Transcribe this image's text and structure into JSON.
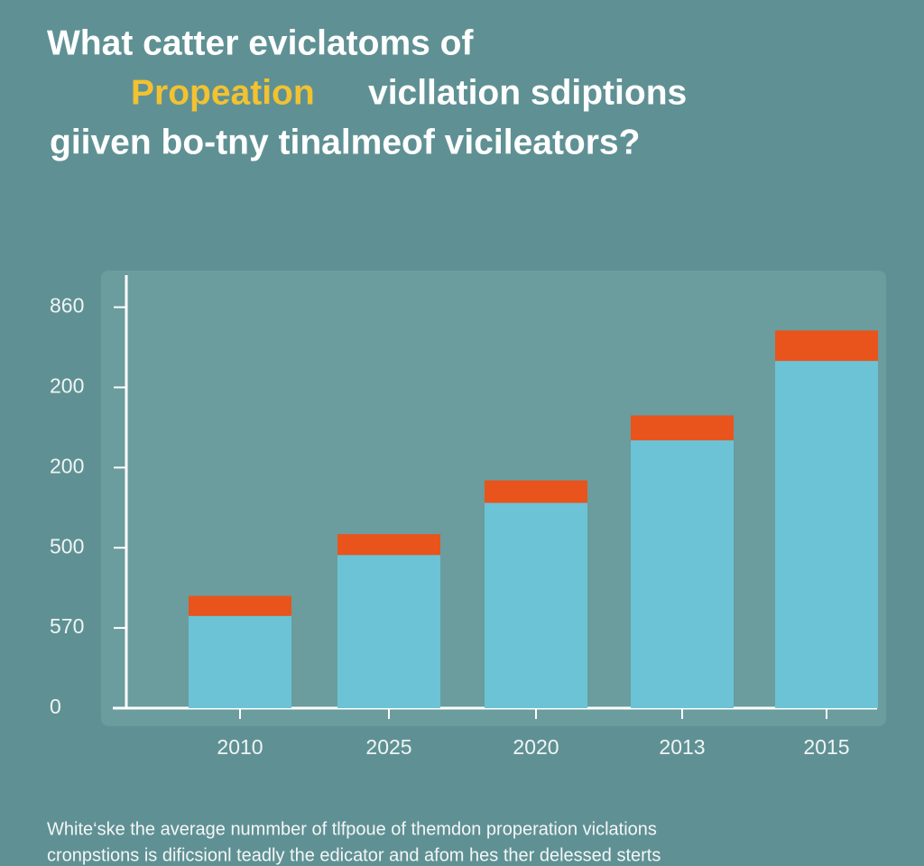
{
  "chart_data": {
    "type": "stacked_bar",
    "title": {
      "line1": "What catter eviclatoms of",
      "highlight": "Propeation",
      "line2_rest": "vicllation sdiptions",
      "line3": "giiven bo-tny tinalmeof vicileators?"
    },
    "categories": [
      "2010",
      "2025",
      "2020",
      "2013",
      "2015"
    ],
    "series": [
      {
        "color": "#6cc3d6",
        "values": [
          1.15,
          1.91,
          2.56,
          3.34,
          4.33
        ]
      },
      {
        "color": "#e8541c",
        "values": [
          0.25,
          0.26,
          0.28,
          0.31,
          0.38
        ]
      }
    ],
    "ylim": [
      0,
      5.4
    ],
    "yticks": [
      0,
      {
        "value": 1,
        "label": "570"
      },
      {
        "value": 2,
        "label": "500"
      },
      {
        "value": 3,
        "label": "200"
      },
      {
        "value": 4,
        "label": "200"
      },
      {
        "value": 5,
        "label": "860"
      }
    ],
    "caption": [
      "White‘ske the average nummber of tlfpoue of themdon properation viclations",
      "cronpstions is dificsionl teadly the edicator and afom hes ther delessed sterts"
    ]
  }
}
